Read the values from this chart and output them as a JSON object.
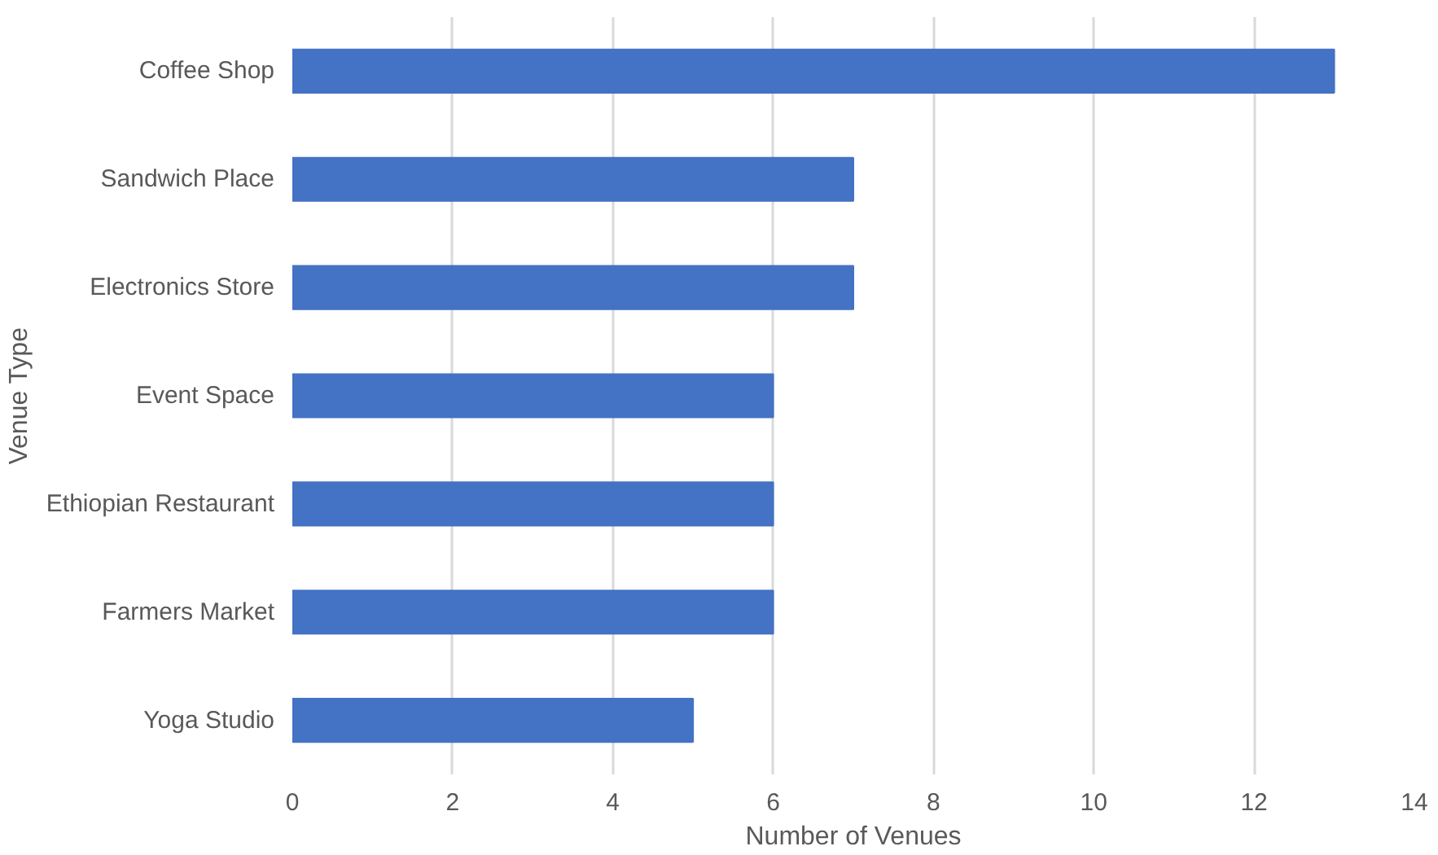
{
  "chart_data": {
    "type": "bar",
    "orientation": "horizontal",
    "xlabel": "Number of Venues",
    "ylabel": "Venue Type",
    "categories": [
      "Coffee Shop",
      "Sandwich Place",
      "Electronics Store",
      "Event Space",
      "Ethiopian Restaurant",
      "Farmers Market",
      "Yoga Studio"
    ],
    "values": [
      13,
      7,
      7,
      6,
      6,
      6,
      5
    ],
    "color": "#4472c4",
    "xlim": [
      0,
      14
    ],
    "xticks": [
      0,
      2,
      4,
      6,
      8,
      10,
      12,
      14
    ],
    "grid": "x"
  }
}
